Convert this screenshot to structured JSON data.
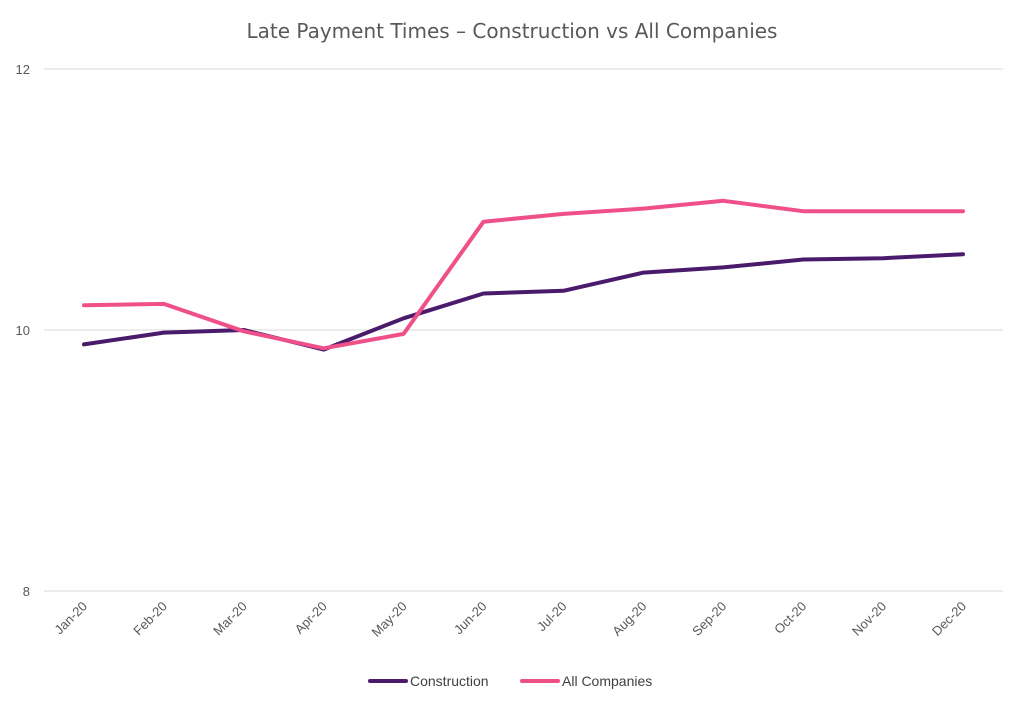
{
  "chart_data": {
    "type": "line",
    "title": "Late Payment Times – Construction vs All Companies",
    "xlabel": "",
    "ylabel": "",
    "categories": [
      "Jan-20",
      "Feb-20",
      "Mar-20",
      "Apr-20",
      "May-20",
      "Jun-20",
      "Jul-20",
      "Aug-20",
      "Sep-20",
      "Oct-20",
      "Nov-20",
      "Dec-20"
    ],
    "ylim": [
      8,
      12
    ],
    "yticks": [
      "8",
      "10",
      "12"
    ],
    "grid": true,
    "legend_position": "bottom",
    "series": [
      {
        "name": "Construction",
        "color": "#4a1a6b",
        "values": [
          9.89,
          9.98,
          10.0,
          9.85,
          10.09,
          10.28,
          10.3,
          10.44,
          10.48,
          10.54,
          10.55,
          10.58
        ]
      },
      {
        "name": "All Companies",
        "color": "#f0508a",
        "values": [
          10.19,
          10.2,
          9.99,
          9.86,
          9.97,
          10.83,
          10.89,
          10.93,
          10.99,
          10.91,
          10.91,
          10.91
        ]
      }
    ]
  }
}
